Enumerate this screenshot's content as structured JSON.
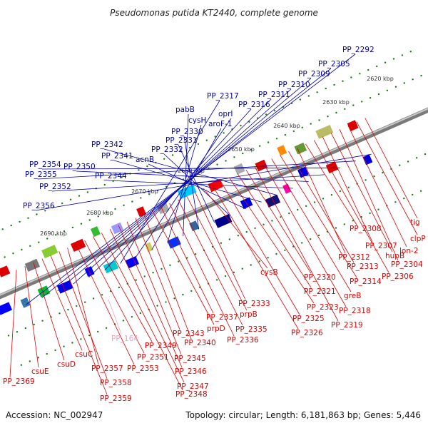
{
  "title": "Pseudomonas putida KT2440, complete genome",
  "accession": "Accession: NC_002947",
  "topology": "Topology: circular; Length: 6,181,863 bp; Genes: 5,446",
  "colors": {
    "forward_label": "#0000aa",
    "reverse_label": "#dd0000",
    "pseudo_label": "#f0a0c8",
    "tick": "#1a7a1a",
    "backbone": "#9a9a9a"
  },
  "ticks": [
    "2620 kbp",
    "2630 kbp",
    "2640 kbp",
    "2650 kbp",
    "2660 kbp",
    "2670 kbp",
    "2680 kbp",
    "2690 kbp"
  ],
  "forward_labels": [
    "PP_2292",
    "PP_2305",
    "PP_2309",
    "PP_2310",
    "PP_2311",
    "PP_2316",
    "PP_2317",
    "oprI",
    "aroF-1",
    "cysH",
    "pabB",
    "PP_2330",
    "PP_2331",
    "PP_2332",
    "acnB",
    "PP_2341",
    "PP_2342",
    "PP_2344",
    "PP_2350",
    "PP_2352",
    "PP_2354",
    "PP_2355",
    "PP_2356"
  ],
  "reverse_labels": [
    "tig",
    "clpP",
    "lon-2",
    "PP_2304",
    "hupB",
    "PP_2307",
    "PP_2306",
    "PP_2308",
    "PP_2312",
    "PP_2313",
    "PP_2314",
    "greB",
    "PP_2318",
    "PP_2319",
    "PP_2320",
    "PP_2321",
    "PP_2323",
    "PP_2325",
    "PP_2326",
    "cysB",
    "PP_2333",
    "prpB",
    "PP_2335",
    "PP_2336",
    "PP_2337",
    "prpD",
    "PP_2340",
    "PP_2343",
    "PP_2345",
    "PP_2346",
    "PP_2347",
    "PP_2348",
    "PP_2349",
    "PP_2351",
    "PP_2353",
    "PP_2357",
    "PP_2358",
    "PP_2359",
    "csuC",
    "csuD",
    "csuE",
    "PP_2369"
  ],
  "pseudo_labels": [
    "PP_164"
  ]
}
